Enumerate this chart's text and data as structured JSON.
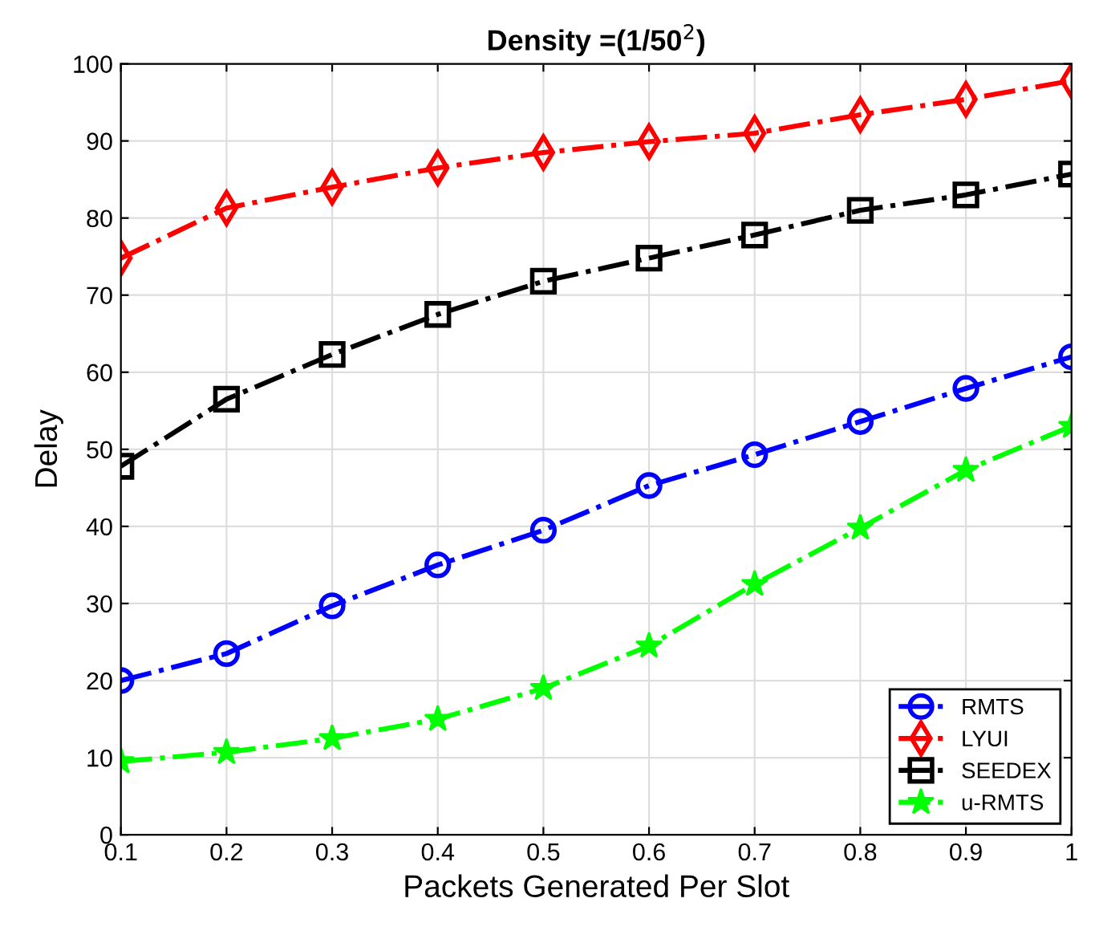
{
  "chart_data": {
    "type": "line",
    "title": "Density =(1/50$^{2}$)",
    "xlabel": "Packets Generated Per Slot",
    "ylabel": "Delay",
    "x": [
      0.1,
      0.2,
      0.3,
      0.4,
      0.5,
      0.6,
      0.7,
      0.8,
      0.9,
      1.0
    ],
    "series": [
      {
        "name": "RMTS",
        "color": "#0000ff",
        "marker": "circle",
        "values": [
          20,
          23.5,
          29.7,
          35,
          39.5,
          45.3,
          49.3,
          53.6,
          57.9,
          62
        ]
      },
      {
        "name": "LYUI",
        "color": "#ff0000",
        "marker": "diamond",
        "values": [
          74.8,
          81.3,
          84,
          86.5,
          88.5,
          89.9,
          91,
          93.4,
          95.4,
          97.8
        ]
      },
      {
        "name": "SEEDEX",
        "color": "#000000",
        "marker": "square",
        "values": [
          47.8,
          56.5,
          62.3,
          67.5,
          71.8,
          74.8,
          77.8,
          81,
          83,
          85.7
        ]
      },
      {
        "name": "u-RMTS",
        "color": "#00ff00",
        "marker": "star",
        "values": [
          9.5,
          10.7,
          12.5,
          15,
          19,
          24.5,
          32.5,
          39.8,
          47.3,
          53
        ]
      }
    ],
    "line_style": "dashdot",
    "xlim": [
      0.1,
      1.0
    ],
    "xticks": [
      0.1,
      0.2,
      0.3,
      0.4,
      0.5,
      0.6,
      0.7,
      0.8,
      0.9,
      {
        "value": 1.0,
        "label": "1"
      }
    ],
    "ylim": [
      0,
      100
    ],
    "yticks": [
      0,
      10,
      20,
      30,
      40,
      50,
      60,
      70,
      80,
      90,
      100
    ],
    "grid": true,
    "legend": "bottom right"
  }
}
